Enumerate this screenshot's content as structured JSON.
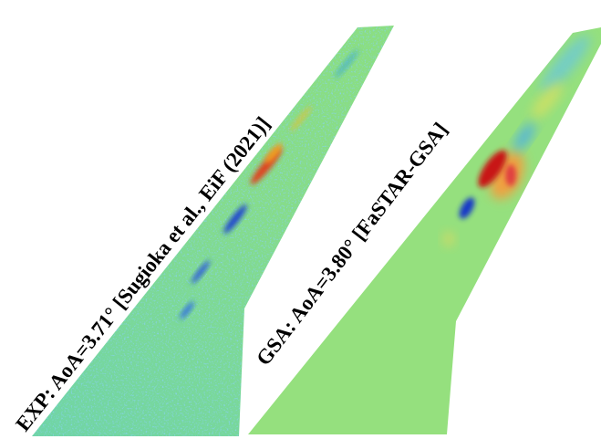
{
  "panels": [
    {
      "label": "EXP: AoA=3.71° [Sugioka et al., EiF (2021)]"
    },
    {
      "label": "GSA: AoA=3.80° [FaSTAR-GSA]"
    }
  ]
}
